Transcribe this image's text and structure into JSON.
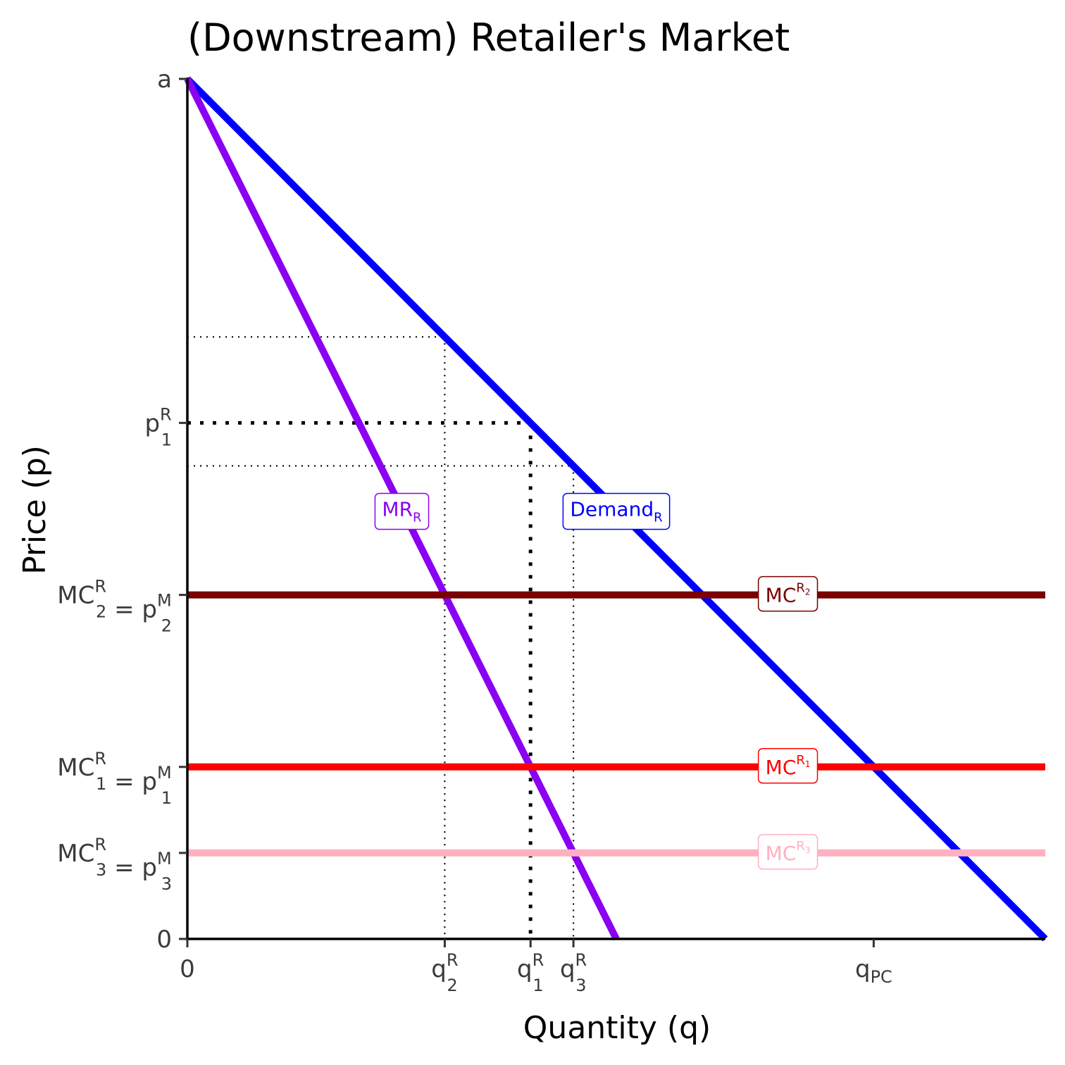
{
  "chart_data": {
    "type": "line",
    "title": "(Downstream) Retailer's Market",
    "xlabel": "Quantity (q)",
    "ylabel": "Price (p)",
    "xlim": [
      0,
      10
    ],
    "ylim": [
      0,
      10
    ],
    "x_ticks": [
      {
        "value": 0,
        "base": "0",
        "sup": "",
        "sub": ""
      },
      {
        "value": 3,
        "base": "q",
        "sup": "R",
        "sub": "2"
      },
      {
        "value": 4,
        "base": "q",
        "sup": "R",
        "sub": "1"
      },
      {
        "value": 4.5,
        "base": "q",
        "sup": "R",
        "sub": "3"
      },
      {
        "value": 8,
        "base": "q",
        "sup": "",
        "sub": "PC"
      }
    ],
    "y_ticks": [
      {
        "value": 10,
        "parts": [
          {
            "base": "a",
            "sup": "",
            "sub": ""
          }
        ]
      },
      {
        "value": 6,
        "parts": [
          {
            "base": "p",
            "sup": "R",
            "sub": "1"
          }
        ]
      },
      {
        "value": 4,
        "parts": [
          {
            "base": "MC",
            "sup": "R",
            "sub": "2"
          },
          {
            "base": " = p",
            "sup": "M",
            "sub": "2"
          }
        ]
      },
      {
        "value": 2,
        "parts": [
          {
            "base": "MC",
            "sup": "R",
            "sub": "1"
          },
          {
            "base": " = p",
            "sup": "M",
            "sub": "1"
          }
        ]
      },
      {
        "value": 1,
        "parts": [
          {
            "base": "MC",
            "sup": "R",
            "sub": "3"
          },
          {
            "base": " = p",
            "sup": "M",
            "sub": "3"
          }
        ]
      },
      {
        "value": 0,
        "parts": [
          {
            "base": "0",
            "sup": "",
            "sub": ""
          }
        ]
      }
    ],
    "series": [
      {
        "key": "demand",
        "label_base": "Demand",
        "label_sub": "R",
        "color": "#0000ff",
        "points": [
          [
            0,
            10
          ],
          [
            10,
            0
          ]
        ],
        "label_at": [
          5,
          5
        ]
      },
      {
        "key": "mr",
        "label_base": "MR",
        "label_sub": "R",
        "color": "#8b00f0",
        "points": [
          [
            0,
            10
          ],
          [
            5,
            0
          ]
        ],
        "label_at": [
          2.5,
          5
        ]
      },
      {
        "key": "mc2",
        "label_base": "MC",
        "label_sup": "R",
        "label_supsub": "2",
        "color": "#7a0000",
        "points": [
          [
            0,
            4
          ],
          [
            10,
            4
          ]
        ],
        "label_at": [
          7,
          4
        ]
      },
      {
        "key": "mc1",
        "label_base": "MC",
        "label_sup": "R",
        "label_supsub": "1",
        "color": "#ff0000",
        "points": [
          [
            0,
            2
          ],
          [
            10,
            2
          ]
        ],
        "label_at": [
          7,
          2
        ]
      },
      {
        "key": "mc3",
        "label_base": "MC",
        "label_sup": "R",
        "label_supsub": "3",
        "color": "#ffb0c0",
        "points": [
          [
            0,
            1
          ],
          [
            10,
            1
          ]
        ],
        "label_at": [
          7,
          1
        ]
      }
    ],
    "guides": [
      {
        "key": "p2-h",
        "points": [
          [
            0,
            7
          ],
          [
            3,
            7
          ]
        ],
        "weight": "thin"
      },
      {
        "key": "q2-v",
        "points": [
          [
            3,
            7
          ],
          [
            3,
            0
          ]
        ],
        "weight": "thin"
      },
      {
        "key": "p1-h",
        "points": [
          [
            0,
            6
          ],
          [
            4,
            6
          ]
        ],
        "weight": "thick"
      },
      {
        "key": "q1-v",
        "points": [
          [
            4,
            6
          ],
          [
            4,
            0
          ]
        ],
        "weight": "thick"
      },
      {
        "key": "p3-h",
        "points": [
          [
            0,
            5.5
          ],
          [
            4.5,
            5.5
          ]
        ],
        "weight": "thin"
      },
      {
        "key": "q3-v",
        "points": [
          [
            4.5,
            5.5
          ],
          [
            4.5,
            0
          ]
        ],
        "weight": "thin"
      }
    ],
    "grid": false,
    "legend": "none"
  }
}
